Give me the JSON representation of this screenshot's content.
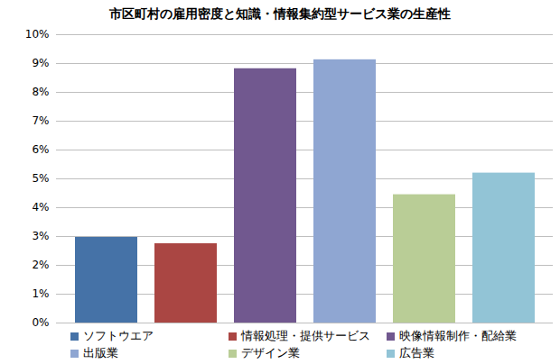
{
  "chart_data": {
    "type": "bar",
    "title": "市区町村の雇用密度と知識・情報集約型サービス業の生産性",
    "categories": [
      "ソフトウエア",
      "情報処理・提供サービス",
      "映像情報制作・配給業",
      "出版業",
      "デザイン業",
      "広告業"
    ],
    "values": [
      2.97,
      2.75,
      8.82,
      9.13,
      4.45,
      5.2
    ],
    "colors": [
      "#4572a7",
      "#aa4643",
      "#71588f",
      "#8fa6d2",
      "#b9cd96",
      "#92c4d6"
    ],
    "ylim": [
      0,
      10
    ],
    "yticks": [
      {
        "value": 0,
        "label": "0%"
      },
      {
        "value": 1,
        "label": "1%"
      },
      {
        "value": 2,
        "label": "2%"
      },
      {
        "value": 3,
        "label": "3%"
      },
      {
        "value": 4,
        "label": "4%"
      },
      {
        "value": 5,
        "label": "5%"
      },
      {
        "value": 6,
        "label": "6%"
      },
      {
        "value": 7,
        "label": "7%"
      },
      {
        "value": 8,
        "label": "8%"
      },
      {
        "value": 9,
        "label": "9%"
      },
      {
        "value": 10,
        "label": "10%"
      }
    ],
    "grid": true,
    "legend": "bottom",
    "tick_labels": "y"
  }
}
